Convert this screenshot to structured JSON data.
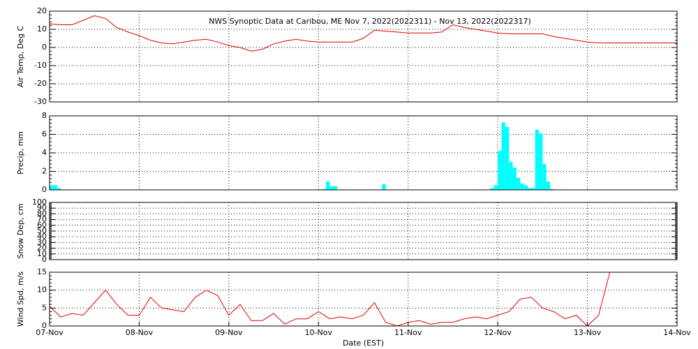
{
  "chart_data": [
    {
      "type": "line",
      "title": "NWS Synoptic Data at Caribou, ME   Nov  7, 2022(2022311) - Nov 13, 2022(2022317)",
      "ylabel": "Air Temp, Deg C",
      "color": "#e00000",
      "grid": true,
      "xlim": [
        0,
        168
      ],
      "ylim": [
        -30,
        20
      ],
      "yticks": [
        -30,
        -20,
        -10,
        0,
        10,
        20
      ],
      "x": [
        0,
        3,
        6,
        9,
        12,
        15,
        18,
        21,
        24,
        27,
        30,
        33,
        36,
        39,
        42,
        45,
        48,
        51,
        54,
        57,
        60,
        63,
        66,
        69,
        72,
        75,
        78,
        81,
        84,
        87,
        90,
        93,
        96,
        99,
        102,
        105,
        108,
        111,
        114,
        117,
        120,
        123,
        126,
        129,
        132,
        135,
        138,
        141,
        144,
        147,
        150,
        153,
        156,
        159,
        162,
        165,
        168
      ],
      "values": [
        13,
        12.5,
        12.5,
        15,
        17.5,
        16,
        11,
        8.5,
        6.5,
        4,
        2.5,
        2,
        3,
        4,
        4.5,
        3,
        1,
        0,
        -2,
        -1,
        2,
        3.5,
        4.5,
        3.5,
        3,
        3,
        3,
        3,
        5,
        9.5,
        9,
        8.5,
        8,
        8,
        8,
        8.5,
        12.5,
        11,
        10,
        9,
        8,
        7.5,
        7.5,
        7.5,
        7.5,
        6,
        5,
        4,
        3,
        2.5,
        2.5,
        2.5,
        2.5,
        2.5,
        2.5,
        2.5,
        2.5
      ]
    },
    {
      "type": "bar",
      "ylabel": "Precip, mm",
      "color": "#00ffff",
      "grid": true,
      "xlim": [
        0,
        168
      ],
      "ylim": [
        0,
        8
      ],
      "yticks": [
        0,
        2,
        4,
        6,
        8
      ],
      "x": [
        0,
        1,
        2,
        73,
        74,
        75,
        76,
        89,
        118,
        119,
        120,
        121,
        122,
        123,
        124,
        125,
        126,
        127,
        128,
        129,
        130,
        131,
        132,
        133,
        134
      ],
      "values": [
        0.5,
        0.5,
        0.2,
        0.1,
        0.9,
        0.4,
        0.4,
        0.6,
        0.2,
        0.5,
        4.2,
        7.3,
        6.8,
        3,
        2.4,
        1.3,
        0.7,
        0.5,
        0.2,
        0.2,
        6.5,
        6.1,
        2.8,
        0.9,
        0.1
      ]
    },
    {
      "type": "line",
      "ylabel": "Snow Dep, cm",
      "grid": true,
      "xlim": [
        0,
        168
      ],
      "ylim": [
        0,
        100
      ],
      "yticks": [
        0,
        10,
        20,
        30,
        40,
        50,
        60,
        70,
        80,
        90,
        100
      ]
    },
    {
      "type": "line",
      "ylabel": "Wind Spd, m/s",
      "xlabel": "Date (EST)",
      "color": "#e00000",
      "grid": true,
      "xlim": [
        0,
        168
      ],
      "ylim": [
        0,
        15
      ],
      "yticks": [
        0,
        5,
        10,
        15
      ],
      "xticks": [
        {
          "value": 0,
          "label": "07-Nov"
        },
        {
          "value": 24,
          "label": "08-Nov"
        },
        {
          "value": 48,
          "label": "09-Nov"
        },
        {
          "value": 72,
          "label": "10-Nov"
        },
        {
          "value": 96,
          "label": "11-Nov"
        },
        {
          "value": 120,
          "label": "12-Nov"
        },
        {
          "value": 144,
          "label": "13-Nov"
        },
        {
          "value": 168,
          "label": "14-Nov"
        }
      ],
      "x": [
        0,
        3,
        6,
        9,
        12,
        15,
        18,
        21,
        24,
        27,
        30,
        33,
        36,
        39,
        42,
        45,
        48,
        51,
        54,
        57,
        60,
        63,
        66,
        69,
        72,
        75,
        78,
        81,
        84,
        87,
        90,
        93,
        96,
        99,
        102,
        105,
        108,
        111,
        114,
        117,
        120,
        123,
        126,
        129,
        132,
        135,
        138,
        141,
        144,
        147,
        150
      ],
      "values": [
        5.5,
        2.5,
        3.5,
        3,
        6.5,
        10,
        6,
        3,
        3,
        8,
        5,
        4.5,
        4,
        8,
        10,
        8.5,
        3,
        6,
        1.5,
        1.5,
        3.5,
        0.5,
        2,
        2,
        4,
        2,
        2.5,
        2,
        3,
        6.5,
        1,
        0,
        1,
        1.5,
        0.5,
        1,
        1,
        2,
        2.5,
        2,
        3,
        4,
        7.5,
        8,
        5,
        4,
        2,
        3,
        0,
        3,
        15
      ]
    }
  ]
}
